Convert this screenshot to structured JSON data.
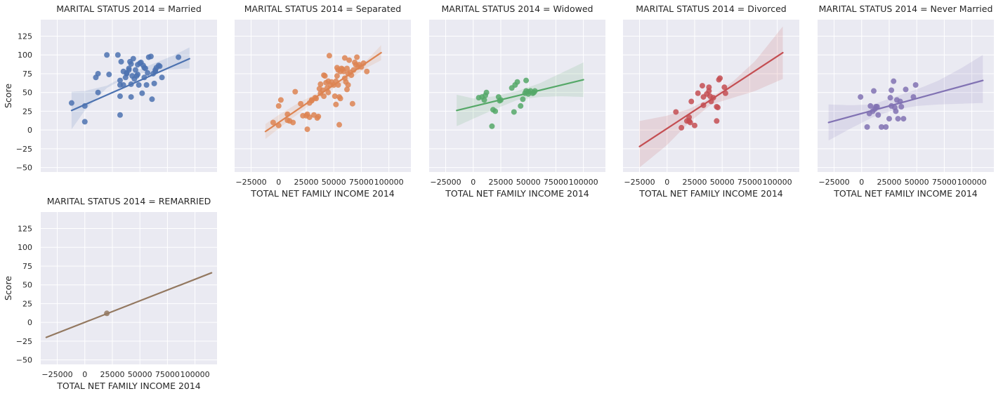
{
  "chart_data": {
    "type": "scatter",
    "kind": "faceted regression scatter (lmplot) with 95% confidence bands",
    "facet_variable": "MARITAL STATUS 2014",
    "xlabel": "TOTAL NET FAMILY INCOME 2014",
    "ylabel": "Score",
    "xlim": [
      -40000,
      120000
    ],
    "ylim": [
      -56,
      147
    ],
    "xticks": [
      -25000,
      0,
      25000,
      50000,
      75000,
      100000
    ],
    "yticks": [
      -50,
      -25,
      0,
      25,
      50,
      75,
      100,
      125
    ],
    "grid": true,
    "background": "#eaeaf2",
    "panels": [
      {
        "title": "MARITAL STATUS 2014 = Married",
        "color": "#4c72b0",
        "points": [
          [
            -12000,
            36
          ],
          [
            0,
            11
          ],
          [
            0,
            32
          ],
          [
            10000,
            70
          ],
          [
            12000,
            75
          ],
          [
            12000,
            50
          ],
          [
            20000,
            100
          ],
          [
            22000,
            74
          ],
          [
            30000,
            100
          ],
          [
            32000,
            60
          ],
          [
            32000,
            66
          ],
          [
            32000,
            45
          ],
          [
            32000,
            20
          ],
          [
            33000,
            91
          ],
          [
            35000,
            78
          ],
          [
            35000,
            60
          ],
          [
            37000,
            70
          ],
          [
            38000,
            75
          ],
          [
            38000,
            76
          ],
          [
            40000,
            80
          ],
          [
            40000,
            82
          ],
          [
            41000,
            91
          ],
          [
            42000,
            88
          ],
          [
            42000,
            61
          ],
          [
            42000,
            44
          ],
          [
            43000,
            72
          ],
          [
            44000,
            95
          ],
          [
            45000,
            68
          ],
          [
            46000,
            80
          ],
          [
            47000,
            72
          ],
          [
            48000,
            87
          ],
          [
            48000,
            74
          ],
          [
            49000,
            60
          ],
          [
            50000,
            89
          ],
          [
            51000,
            90
          ],
          [
            52000,
            49
          ],
          [
            53000,
            86
          ],
          [
            54000,
            83
          ],
          [
            54000,
            70
          ],
          [
            55000,
            82
          ],
          [
            56000,
            60
          ],
          [
            57000,
            76
          ],
          [
            58000,
            97
          ],
          [
            60000,
            98
          ],
          [
            61000,
            41
          ],
          [
            62000,
            75
          ],
          [
            63000,
            62
          ],
          [
            64000,
            80
          ],
          [
            64000,
            78
          ],
          [
            65000,
            83
          ],
          [
            67000,
            86
          ],
          [
            68000,
            85
          ],
          [
            70000,
            70
          ],
          [
            85000,
            97
          ]
        ],
        "regression": {
          "x": [
            -12000,
            95000
          ],
          "y": [
            26,
            95
          ]
        },
        "ci_band": {
          "x": [
            -12000,
            0,
            20000,
            40000,
            60000,
            80000,
            95000
          ],
          "lower": [
            1,
            26,
            56,
            72,
            78,
            81,
            82
          ],
          "upper": [
            51,
            52,
            59,
            75,
            87,
            99,
            110
          ]
        }
      },
      {
        "title": "MARITAL STATUS 2014 = Separated",
        "color": "#dd8452",
        "points": [
          [
            -5000,
            10
          ],
          [
            0,
            6
          ],
          [
            0,
            32
          ],
          [
            2000,
            40
          ],
          [
            8000,
            13
          ],
          [
            8000,
            21
          ],
          [
            10000,
            12
          ],
          [
            13000,
            10
          ],
          [
            15000,
            51
          ],
          [
            20000,
            35
          ],
          [
            22000,
            19
          ],
          [
            25000,
            19
          ],
          [
            26000,
            21
          ],
          [
            26000,
            1
          ],
          [
            28000,
            36
          ],
          [
            28000,
            17
          ],
          [
            30000,
            40
          ],
          [
            30000,
            39
          ],
          [
            32000,
            20
          ],
          [
            33000,
            43
          ],
          [
            34000,
            42
          ],
          [
            35000,
            16
          ],
          [
            36000,
            18
          ],
          [
            37000,
            55
          ],
          [
            38000,
            49
          ],
          [
            38000,
            61
          ],
          [
            40000,
            53
          ],
          [
            41000,
            45
          ],
          [
            41000,
            73
          ],
          [
            42000,
            72
          ],
          [
            43000,
            63
          ],
          [
            44000,
            56
          ],
          [
            45000,
            50
          ],
          [
            45000,
            65
          ],
          [
            46000,
            99
          ],
          [
            47000,
            60
          ],
          [
            48000,
            64
          ],
          [
            50000,
            60
          ],
          [
            51000,
            45
          ],
          [
            52000,
            65
          ],
          [
            52000,
            34
          ],
          [
            53000,
            72
          ],
          [
            53000,
            83
          ],
          [
            54000,
            80
          ],
          [
            54000,
            60
          ],
          [
            55000,
            44
          ],
          [
            55000,
            7
          ],
          [
            56000,
            42
          ],
          [
            56000,
            78
          ],
          [
            57000,
            82
          ],
          [
            58000,
            81
          ],
          [
            59000,
            78
          ],
          [
            60000,
            96
          ],
          [
            60000,
            69
          ],
          [
            61000,
            64
          ],
          [
            62000,
            54
          ],
          [
            62000,
            82
          ],
          [
            63000,
            60
          ],
          [
            63000,
            75
          ],
          [
            64000,
            93
          ],
          [
            65000,
            77
          ],
          [
            66000,
            73
          ],
          [
            67000,
            35
          ],
          [
            68000,
            80
          ],
          [
            69000,
            90
          ],
          [
            70000,
            87
          ],
          [
            71000,
            97
          ],
          [
            72000,
            84
          ],
          [
            73000,
            87
          ],
          [
            75000,
            84
          ],
          [
            77000,
            89
          ],
          [
            80000,
            78
          ]
        ],
        "regression": {
          "x": [
            -12000,
            93000
          ],
          "y": [
            -2,
            103
          ]
        },
        "ci_band": {
          "x": [
            -12000,
            0,
            20000,
            40000,
            60000,
            80000,
            93000
          ],
          "lower": [
            -12,
            2,
            24,
            46,
            64,
            83,
            93
          ],
          "upper": [
            8,
            20,
            38,
            52,
            71,
            93,
            113
          ]
        }
      },
      {
        "title": "MARITAL STATUS 2014 = Widowed",
        "color": "#55a868",
        "points": [
          [
            5000,
            43
          ],
          [
            8000,
            44
          ],
          [
            10000,
            40
          ],
          [
            11000,
            46
          ],
          [
            12000,
            50
          ],
          [
            17000,
            5
          ],
          [
            18000,
            27
          ],
          [
            20000,
            25
          ],
          [
            23000,
            44
          ],
          [
            24000,
            39
          ],
          [
            25000,
            40
          ],
          [
            35000,
            56
          ],
          [
            37000,
            24
          ],
          [
            38000,
            60
          ],
          [
            40000,
            64
          ],
          [
            43000,
            32
          ],
          [
            45000,
            41
          ],
          [
            47000,
            49
          ],
          [
            48000,
            52
          ],
          [
            48000,
            66
          ],
          [
            50000,
            48
          ],
          [
            50000,
            51
          ],
          [
            52000,
            52
          ],
          [
            54000,
            49
          ],
          [
            55000,
            50
          ],
          [
            56000,
            52
          ]
        ],
        "regression": {
          "x": [
            -15000,
            100000
          ],
          "y": [
            26,
            67
          ]
        },
        "ci_band": {
          "x": [
            -15000,
            0,
            20000,
            40000,
            60000,
            80000,
            100000
          ],
          "lower": [
            5,
            15,
            28,
            40,
            44,
            45,
            44
          ],
          "upper": [
            47,
            42,
            45,
            52,
            62,
            76,
            90
          ]
        }
      },
      {
        "title": "MARITAL STATUS 2014 = Divorced",
        "color": "#c44e52",
        "points": [
          [
            8000,
            24
          ],
          [
            13000,
            3
          ],
          [
            18000,
            12
          ],
          [
            20000,
            17
          ],
          [
            20000,
            12
          ],
          [
            21000,
            10
          ],
          [
            22000,
            38
          ],
          [
            25000,
            6
          ],
          [
            28000,
            49
          ],
          [
            32000,
            59
          ],
          [
            33000,
            33
          ],
          [
            33000,
            44
          ],
          [
            36000,
            48
          ],
          [
            38000,
            57
          ],
          [
            38000,
            52
          ],
          [
            39000,
            45
          ],
          [
            40000,
            38
          ],
          [
            42000,
            43
          ],
          [
            45000,
            12
          ],
          [
            45000,
            31
          ],
          [
            46000,
            30
          ],
          [
            47000,
            67
          ],
          [
            48000,
            69
          ],
          [
            52000,
            57
          ],
          [
            53000,
            49
          ]
        ],
        "regression": {
          "x": [
            -25000,
            105000
          ],
          "y": [
            -22,
            103
          ]
        },
        "ci_band": {
          "x": [
            -25000,
            0,
            20000,
            40000,
            60000,
            80000,
            105000
          ],
          "lower": [
            -50,
            -20,
            10,
            34,
            43,
            52,
            68
          ],
          "upper": [
            12,
            19,
            28,
            43,
            65,
            92,
            138
          ]
        }
      },
      {
        "title": "MARITAL STATUS 2014 = Never Married",
        "color": "#8172b3",
        "points": [
          [
            -1000,
            44
          ],
          [
            5000,
            4
          ],
          [
            7000,
            22
          ],
          [
            8000,
            32
          ],
          [
            10000,
            25
          ],
          [
            11000,
            52
          ],
          [
            12000,
            28
          ],
          [
            13000,
            31
          ],
          [
            14000,
            31
          ],
          [
            15000,
            20
          ],
          [
            18000,
            4
          ],
          [
            22000,
            4
          ],
          [
            25000,
            15
          ],
          [
            26000,
            43
          ],
          [
            27000,
            32
          ],
          [
            27000,
            53
          ],
          [
            29000,
            65
          ],
          [
            30000,
            30
          ],
          [
            31000,
            25
          ],
          [
            32000,
            40
          ],
          [
            33000,
            15
          ],
          [
            35000,
            38
          ],
          [
            36000,
            31
          ],
          [
            38000,
            15
          ],
          [
            40000,
            54
          ],
          [
            47000,
            44
          ],
          [
            49000,
            60
          ]
        ],
        "regression": {
          "x": [
            -30000,
            110000
          ],
          "y": [
            10,
            66
          ]
        },
        "ci_band": {
          "x": [
            -30000,
            -10000,
            10000,
            30000,
            50000,
            70000,
            90000,
            110000
          ],
          "lower": [
            -14,
            2,
            17,
            27,
            32,
            34,
            35,
            36
          ],
          "upper": [
            34,
            33,
            34,
            44,
            54,
            66,
            82,
            100
          ]
        }
      },
      {
        "title": "MARITAL STATUS 2014 = REMARRIED",
        "color": "#937860",
        "points": [
          [
            20000,
            12
          ]
        ],
        "regression": {
          "x": [
            -35000,
            115000
          ],
          "y": [
            -20,
            66
          ]
        }
      }
    ]
  }
}
